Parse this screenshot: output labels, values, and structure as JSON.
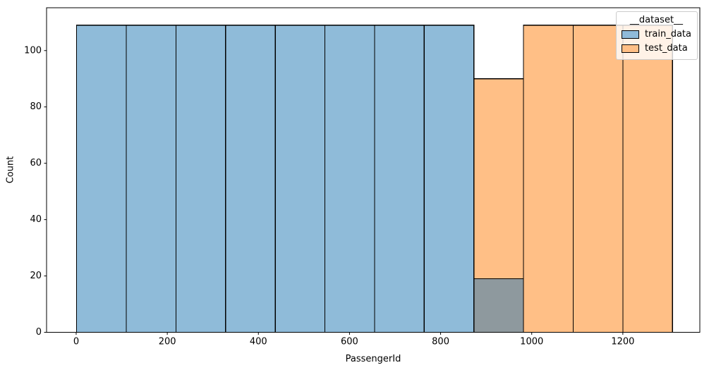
{
  "figure": {
    "background": "#ffffff"
  },
  "legend": {
    "title": "__dataset__",
    "items": [
      {
        "label": "train_data",
        "color": "#8fbbd9"
      },
      {
        "label": "test_data",
        "color": "#ffbf86"
      }
    ]
  },
  "chart_data": {
    "type": "bar",
    "subtype": "histogram",
    "title": "",
    "xlabel": "PassengerId",
    "ylabel": "Count",
    "bin_edges": [
      1,
      110,
      219,
      328,
      437,
      546,
      655,
      764,
      873,
      982,
      1091,
      1200,
      1309
    ],
    "series": [
      {
        "name": "train_data",
        "color": "#8fbbd9",
        "counts": [
          109,
          109,
          109,
          109,
          109,
          109,
          109,
          109,
          19,
          0,
          0,
          0
        ]
      },
      {
        "name": "test_data",
        "color": "#ffbf86",
        "counts": [
          0,
          0,
          0,
          0,
          0,
          0,
          0,
          0,
          90,
          109,
          109,
          109
        ]
      }
    ],
    "overlap_color": "#8e999e",
    "edge_color": "#000000",
    "x_ticks": [
      0,
      200,
      400,
      600,
      800,
      1000,
      1200
    ],
    "y_ticks": [
      0,
      20,
      40,
      60,
      80,
      100
    ],
    "xlim": [
      -65,
      1369
    ],
    "ylim": [
      0,
      115.2
    ],
    "grid": false,
    "legend_position": "upper right"
  }
}
